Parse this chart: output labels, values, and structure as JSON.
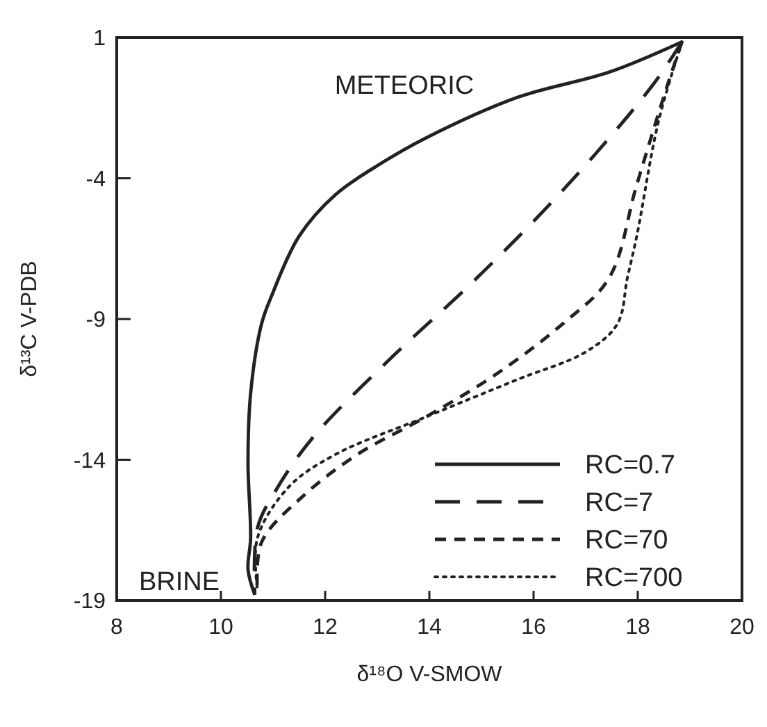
{
  "chart_data": {
    "type": "line",
    "xlabel": "δ¹⁸O  V-SMOW",
    "ylabel": "δ¹³C  V-PDB",
    "xlim": [
      8,
      20
    ],
    "ylim": [
      -19,
      1
    ],
    "xticks": [
      8,
      10,
      12,
      14,
      16,
      18,
      20
    ],
    "yticks": [
      -19,
      -14,
      -9,
      -4,
      1
    ],
    "grid": false,
    "legend": "bottom right",
    "annotations": [
      "METEORIC",
      "BRINE"
    ],
    "series": [
      {
        "name": "RC=0.7",
        "color": "#222222",
        "line_style": "solid",
        "x": [
          18.85,
          17.45,
          15.7,
          13.9,
          13.1,
          12.2,
          11.5,
          10.97,
          10.78,
          10.57,
          10.52,
          10.57,
          10.52,
          10.65
        ],
        "values": [
          0.85,
          -0.23,
          -1.12,
          -2.6,
          -3.44,
          -4.58,
          -6.06,
          -8.19,
          -9.17,
          -11.64,
          -14.11,
          -16.78,
          -17.9,
          -18.8
        ]
      },
      {
        "name": "RC=7",
        "color": "#222222",
        "line_style": "longdash",
        "x": [
          18.85,
          18.27,
          16.56,
          14.83,
          13.25,
          11.76,
          11.05,
          10.7,
          10.65
        ],
        "values": [
          0.85,
          -0.73,
          -4.43,
          -7.69,
          -10.41,
          -13.22,
          -15.1,
          -16.43,
          -18.8
        ]
      },
      {
        "name": "RC=70",
        "color": "#222222",
        "line_style": "dashed",
        "x": [
          18.85,
          18.58,
          17.98,
          17.45,
          16.56,
          15.25,
          13.93,
          12.62,
          11.57,
          10.78,
          10.7
        ],
        "values": [
          0.85,
          -0.63,
          -4.23,
          -7.54,
          -9.17,
          -11.0,
          -12.48,
          -13.81,
          -15.3,
          -16.93,
          -18.6
        ]
      },
      {
        "name": "RC=700",
        "color": "#222222",
        "line_style": "dotted",
        "x": [
          18.85,
          18.4,
          17.98,
          17.8,
          17.61,
          17.01,
          15.69,
          13.93,
          12.2,
          11.31,
          10.7,
          10.7
        ],
        "values": [
          0.85,
          -1.96,
          -6.06,
          -7.54,
          -9.17,
          -10.16,
          -11.15,
          -12.48,
          -13.81,
          -14.95,
          -16.78,
          -18.6
        ]
      }
    ]
  }
}
